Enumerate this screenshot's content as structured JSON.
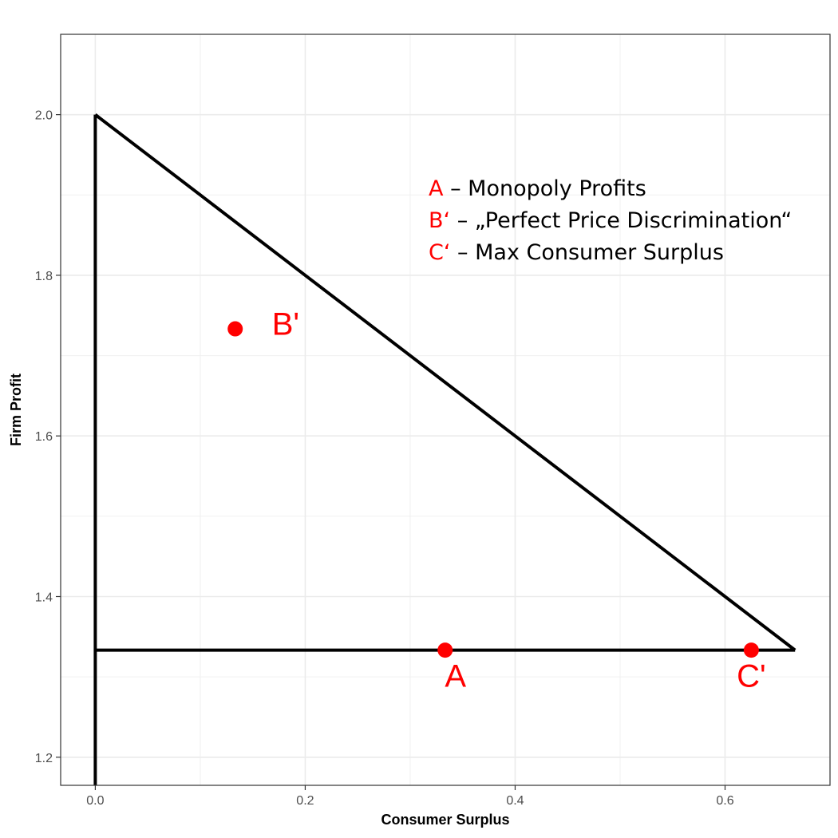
{
  "chart_data": {
    "type": "line",
    "xlabel": "Consumer Surplus",
    "ylabel": "Firm Profit",
    "xlim": [
      -0.033,
      0.7
    ],
    "ylim": [
      1.165,
      2.1
    ],
    "x_ticks": [
      0.0,
      0.2,
      0.4,
      0.6
    ],
    "x_tick_labels": [
      "0.0",
      "0.2",
      "0.4",
      "0.6"
    ],
    "y_ticks": [
      1.2,
      1.4,
      1.6,
      1.8,
      2.0
    ],
    "y_tick_labels": [
      "1.2",
      "1.4",
      "1.6",
      "1.8",
      "2.0"
    ],
    "x_minor_ticks": [
      0.1,
      0.3,
      0.5
    ],
    "y_minor_ticks": [
      1.3,
      1.5,
      1.7,
      1.9
    ],
    "grid": true,
    "line_color": "#000000",
    "point_color": "#ff0000",
    "segments": [
      {
        "x": [
          0.0,
          0.0
        ],
        "y": [
          1.165,
          2.0
        ]
      },
      {
        "x": [
          0.0,
          0.6667
        ],
        "y": [
          2.0,
          1.3333
        ]
      },
      {
        "x": [
          0.0,
          0.6667
        ],
        "y": [
          1.3333,
          1.3333
        ]
      }
    ],
    "points": [
      {
        "label": "A",
        "x": 0.3333,
        "y": 1.3333
      },
      {
        "label": "B'",
        "x": 0.1333,
        "y": 1.7333
      },
      {
        "label": "C'",
        "x": 0.625,
        "y": 1.3333
      }
    ],
    "legend": [
      {
        "key": "A",
        "text": " – Monopoly Profits"
      },
      {
        "key": "B‘",
        "text": " – „Perfect Price Discrimination“"
      },
      {
        "key": "C‘",
        "text": " – Max Consumer Surplus"
      }
    ]
  }
}
